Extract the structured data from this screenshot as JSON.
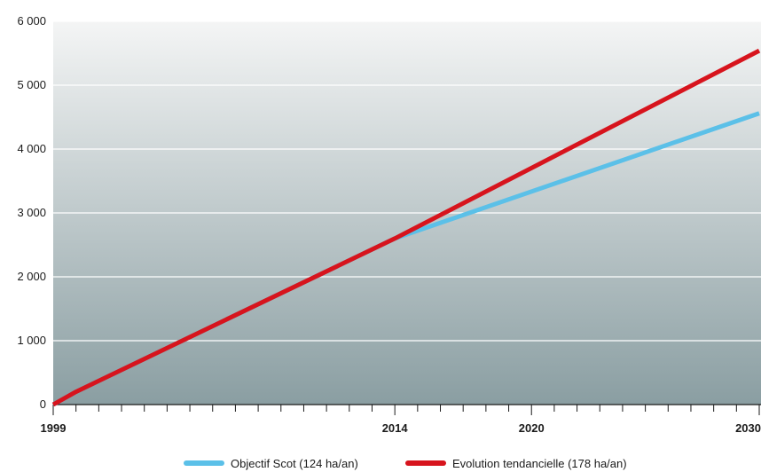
{
  "chart_data": {
    "type": "line",
    "title": "",
    "xlabel": "",
    "ylabel": "",
    "xlim": [
      1999,
      2030
    ],
    "ylim": [
      0,
      6000
    ],
    "y_ticks": [
      0,
      1000,
      2000,
      3000,
      4000,
      5000,
      6000
    ],
    "y_tick_labels": [
      "0",
      "1 000",
      "2 000",
      "3 000",
      "4 000",
      "5 000",
      "6 000"
    ],
    "x_tick_labels": [
      {
        "value": 1999,
        "label": "1999"
      },
      {
        "value": 2014,
        "label": "2014"
      },
      {
        "value": 2020,
        "label": "2020"
      },
      {
        "value": 2030,
        "label": "2030"
      }
    ],
    "grid": true,
    "legend_position": "bottom",
    "series": [
      {
        "name": "Objectif Scot (124 ha/an)",
        "color": "#5bc0e8",
        "points": [
          [
            1999,
            0
          ],
          [
            2000,
            200
          ],
          [
            2014,
            2600
          ],
          [
            2030,
            4560
          ]
        ]
      },
      {
        "name": "Evolution tendancielle (178 ha/an)",
        "color": "#d7141d",
        "points": [
          [
            1999,
            0
          ],
          [
            2000,
            200
          ],
          [
            2014,
            2600
          ],
          [
            2030,
            5540
          ]
        ]
      }
    ]
  }
}
